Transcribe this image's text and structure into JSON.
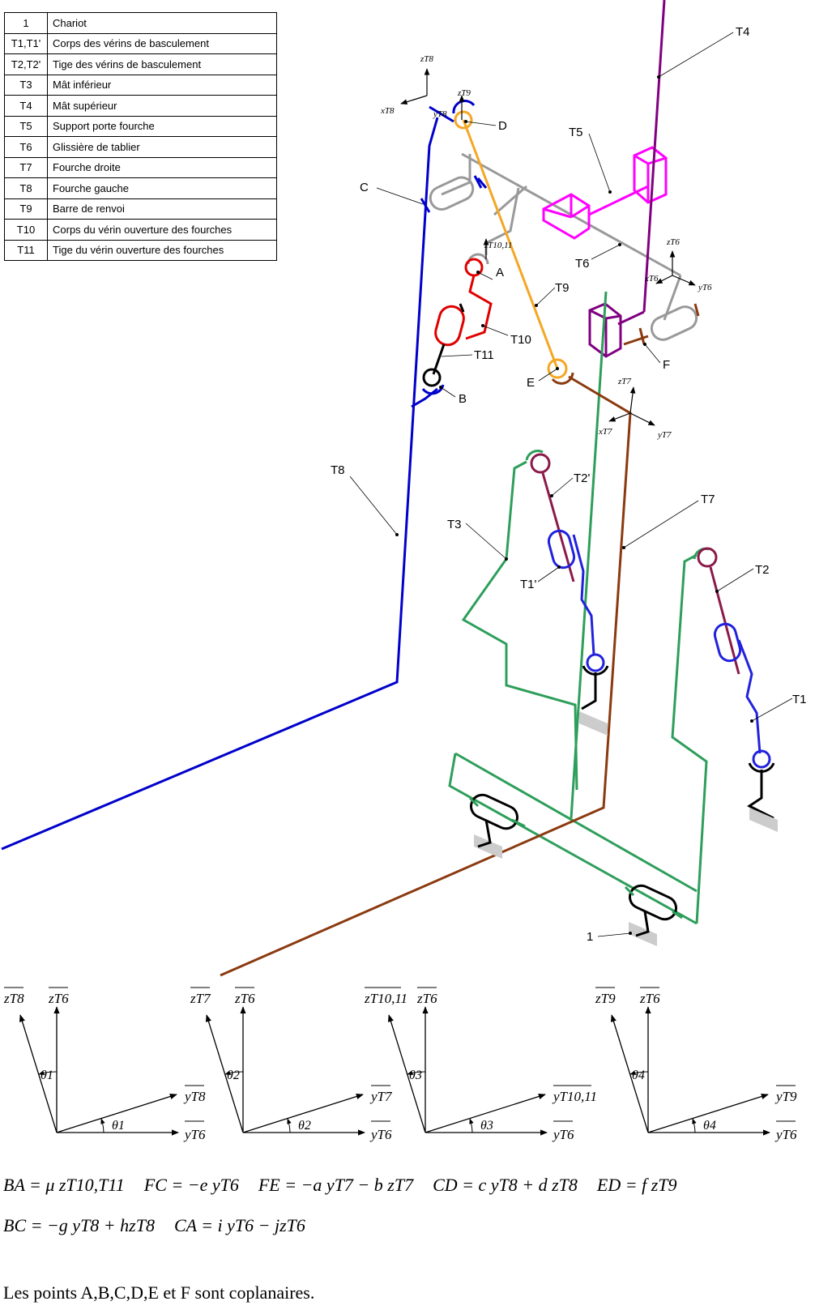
{
  "legend": [
    {
      "key": "1",
      "label": "Chariot"
    },
    {
      "key": "T1,T1'",
      "label": "Corps des vérins de basculement"
    },
    {
      "key": "T2,T2'",
      "label": "Tige des vérins de basculement"
    },
    {
      "key": "T3",
      "label": "Mât inférieur"
    },
    {
      "key": "T4",
      "label": "Mât supérieur"
    },
    {
      "key": "T5",
      "label": "Support porte fourche"
    },
    {
      "key": "T6",
      "label": "Glissière de tablier"
    },
    {
      "key": "T7",
      "label": "Fourche droite"
    },
    {
      "key": "T8",
      "label": "Fourche gauche"
    },
    {
      "key": "T9",
      "label": "Barre de renvoi"
    },
    {
      "key": "T10",
      "label": "Corps du vérin ouverture des fourches"
    },
    {
      "key": "T11",
      "label": "Tige du vérin ouverture des fourches"
    }
  ],
  "labels": {
    "T4": "T4",
    "T5": "T5",
    "T6": "T6",
    "T9": "T9",
    "T10": "T10",
    "T11": "T11",
    "T8": "T8",
    "T3": "T3",
    "T2p": "T2'",
    "T1p": "T1'",
    "T7": "T7",
    "T2": "T2",
    "T1": "T1",
    "one": "1",
    "A": "A",
    "B": "B",
    "C": "C",
    "D": "D",
    "E": "E",
    "F": "F"
  },
  "axes": {
    "zT8": "zT8",
    "xT8": "xT8",
    "yT8": "yT8",
    "zT9": "zT9",
    "zT1011": "zT10,11",
    "zT6": "zT6",
    "xT6": "xT6",
    "yT6": "yT6",
    "zT7": "zT7",
    "xT7": "xT7",
    "yT7": "yT7"
  },
  "angle_figures": [
    {
      "top": "zT8",
      "right": "zT6",
      "tilted_up": "yT8",
      "base": "yT6",
      "angle": "θ1"
    },
    {
      "top": "zT7",
      "right": "zT6",
      "tilted_up": "yT7",
      "base": "yT6",
      "angle": "θ2"
    },
    {
      "top": "zT10,11",
      "right": "zT6",
      "tilted_up": "yT10,11",
      "base": "yT6",
      "angle": "θ3"
    },
    {
      "top": "zT9",
      "right": "zT6",
      "tilted_up": "yT9",
      "base": "yT6",
      "angle": "θ4"
    }
  ],
  "equations": {
    "line1": [
      "BA = μ zT10,T11",
      "FC = −e yT6",
      "FE = −a yT7 − b zT7",
      "CD = c yT8 + d zT8",
      "ED = f zT9"
    ],
    "line2": [
      "BC = −g yT8 + hzT8",
      "CA = i yT6 − jzT6"
    ],
    "note": "Les points A,B,C,D,E et F sont coplanaires."
  },
  "colors": {
    "T8": "#0000cc",
    "T7": "#8b3a0f",
    "T3": "#2e9e5b",
    "T4": "#800080",
    "T5": "#ff00ff",
    "T6": "#999999",
    "T9": "#f5a623",
    "T10": "#e00000",
    "T11": "#000000",
    "T1": "#2222dd",
    "T2": "#8b1a4a",
    "ground": "#cccccc"
  }
}
